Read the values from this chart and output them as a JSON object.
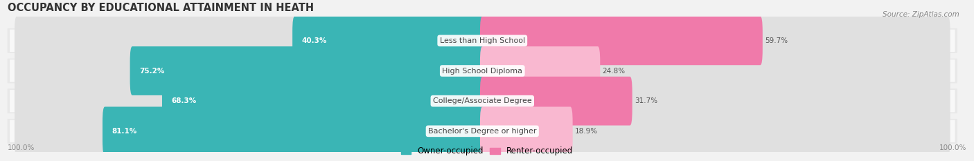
{
  "title": "OCCUPANCY BY EDUCATIONAL ATTAINMENT IN HEATH",
  "source": "Source: ZipAtlas.com",
  "categories": [
    "Less than High School",
    "High School Diploma",
    "College/Associate Degree",
    "Bachelor's Degree or higher"
  ],
  "owner_values": [
    40.3,
    75.2,
    68.3,
    81.1
  ],
  "renter_values": [
    59.7,
    24.8,
    31.7,
    18.9
  ],
  "owner_color": "#3ab5b5",
  "renter_color": "#f07aaa",
  "renter_color_light": "#f9b8d0",
  "background_color": "#f2f2f2",
  "bar_bg_color": "#e8e8e8",
  "row_bg_color": "#ffffff",
  "title_fontsize": 10.5,
  "label_fontsize": 8.0,
  "legend_fontsize": 8.5,
  "bar_height": 0.62,
  "total_width": 100.0,
  "left_axis_label": "100.0%",
  "right_axis_label": "100.0%"
}
